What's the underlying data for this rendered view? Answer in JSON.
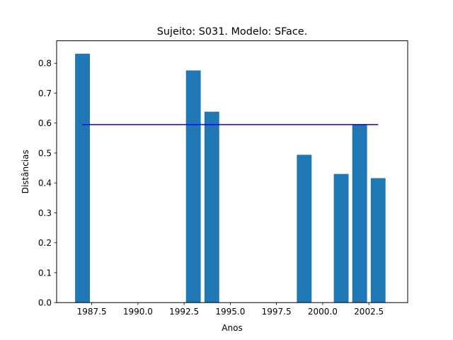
{
  "chart_data": {
    "type": "bar",
    "title": "Sujeito: S031. Modelo: SFace.",
    "xlabel": "Anos",
    "ylabel": "Distâncias",
    "xlim": [
      1985.6,
      2004.6
    ],
    "ylim": [
      0,
      0.875
    ],
    "xticks": [
      1987.5,
      1990.0,
      1992.5,
      1995.0,
      1997.5,
      2000.0,
      2002.5
    ],
    "xtick_labels": [
      "1987.5",
      "1990.0",
      "1992.5",
      "1995.0",
      "1997.5",
      "2000.0",
      "2002.5"
    ],
    "yticks": [
      0.0,
      0.1,
      0.2,
      0.3,
      0.4,
      0.5,
      0.6,
      0.7,
      0.8
    ],
    "ytick_labels": [
      "0.0",
      "0.1",
      "0.2",
      "0.3",
      "0.4",
      "0.5",
      "0.6",
      "0.7",
      "0.8"
    ],
    "bar_width": 0.8,
    "bar_color": "#1f77b4",
    "x": [
      1987,
      1993,
      1994,
      1999,
      2001,
      2002,
      2003
    ],
    "values": [
      0.832,
      0.776,
      0.638,
      0.494,
      0.43,
      0.594,
      0.416
    ],
    "reference_line": {
      "value": 0.595,
      "x_range": [
        1987,
        2003
      ],
      "color": "#0000ff"
    },
    "grid": false,
    "legend": "none"
  }
}
